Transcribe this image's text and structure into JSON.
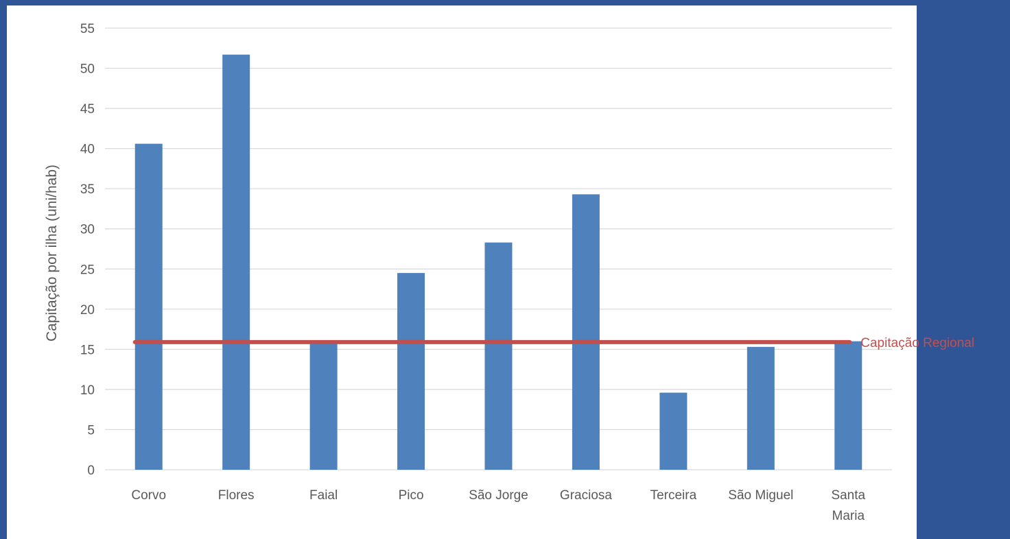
{
  "chart_data": {
    "type": "bar",
    "categories": [
      [
        "Corvo"
      ],
      [
        "Flores"
      ],
      [
        "Faial"
      ],
      [
        "Pico"
      ],
      [
        "São Jorge"
      ],
      [
        "Graciosa"
      ],
      [
        "Terceira"
      ],
      [
        "São Miguel"
      ],
      [
        "Santa",
        "Maria"
      ]
    ],
    "values": [
      40.6,
      51.7,
      16.1,
      24.5,
      28.3,
      34.3,
      9.6,
      15.3,
      16.0
    ],
    "ylabel": "Capitação por ilha (uni/hab)",
    "xlabel": "",
    "title": "",
    "ylim": [
      0,
      55
    ],
    "yticks": [
      0,
      5,
      10,
      15,
      20,
      25,
      30,
      35,
      40,
      45,
      50,
      55
    ],
    "grid": true,
    "reference_line": {
      "label": "Capitação Regional",
      "value": 15.9
    },
    "colors": {
      "bar": "#4f81bd",
      "reference_line": "#c0504d",
      "grid": "#d9d9d9",
      "text": "#595959",
      "background": "#2f5597"
    }
  }
}
